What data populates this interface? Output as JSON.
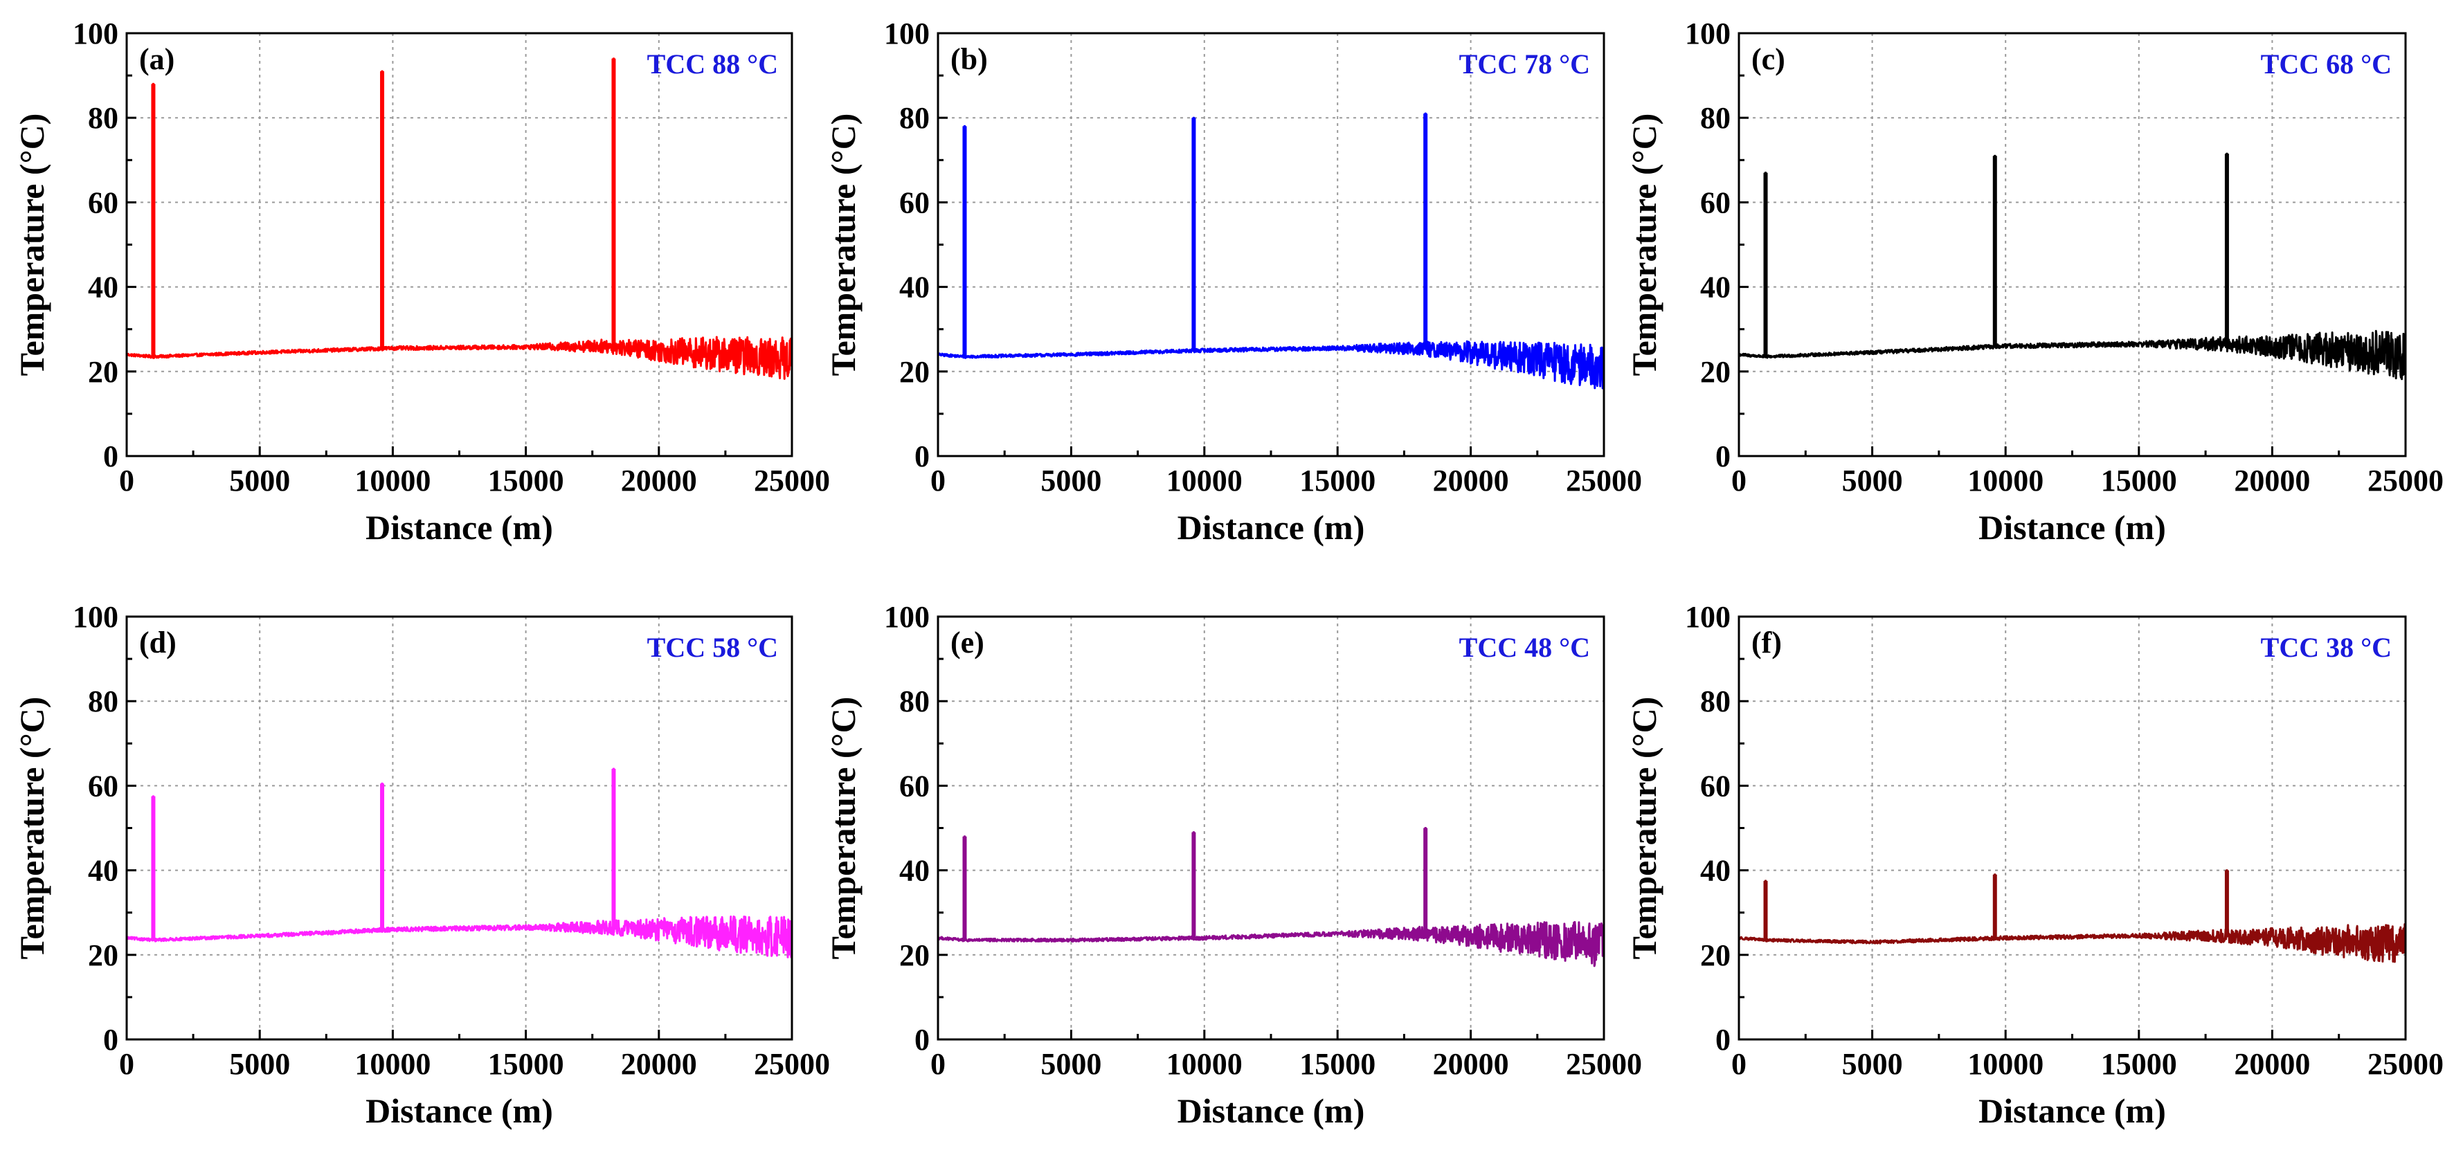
{
  "chart_data": [
    {
      "type": "line",
      "panel_label": "(a)",
      "annotation": "TCC  88 °C",
      "color": "#ff0000",
      "xlabel": "Distance (m)",
      "ylabel": "Temperature (°C)",
      "xlim": [
        0,
        25000
      ],
      "ylim": [
        0,
        100
      ],
      "xticks": [
        "0",
        "5000",
        "10000",
        "15000",
        "20000",
        "25000"
      ],
      "yticks": [
        "0",
        "20",
        "40",
        "60",
        "80",
        "100"
      ],
      "grid": true,
      "baseline": {
        "x": [
          0,
          1000,
          5000,
          10000,
          15000,
          18000,
          20000,
          25000
        ],
        "y": [
          24,
          23.5,
          24.5,
          25.5,
          25.8,
          26,
          25,
          23
        ]
      },
      "noise": {
        "x": [
          0,
          15000,
          19000,
          22000,
          25000
        ],
        "amp": [
          0.3,
          0.5,
          2,
          4,
          5
        ]
      },
      "peaks": [
        {
          "x": 1000,
          "y": 88
        },
        {
          "x": 9600,
          "y": 91
        },
        {
          "x": 18300,
          "y": 94
        }
      ]
    },
    {
      "type": "line",
      "panel_label": "(b)",
      "annotation": "TCC  78 °C",
      "color": "#0000ff",
      "xlabel": "Distance (m)",
      "ylabel": "Temperature (°C)",
      "xlim": [
        0,
        25000
      ],
      "ylim": [
        0,
        100
      ],
      "xticks": [
        "0",
        "5000",
        "10000",
        "15000",
        "20000",
        "25000"
      ],
      "yticks": [
        "0",
        "20",
        "40",
        "60",
        "80",
        "100"
      ],
      "grid": true,
      "baseline": {
        "x": [
          0,
          1000,
          5000,
          10000,
          15000,
          18000,
          20000,
          25000
        ],
        "y": [
          24,
          23.5,
          24,
          25,
          25.5,
          25.5,
          24.5,
          21
        ]
      },
      "noise": {
        "x": [
          0,
          15000,
          19000,
          22000,
          25000
        ],
        "amp": [
          0.3,
          0.5,
          2,
          4,
          5.5
        ]
      },
      "peaks": [
        {
          "x": 1000,
          "y": 78
        },
        {
          "x": 9600,
          "y": 80
        },
        {
          "x": 18300,
          "y": 81
        }
      ]
    },
    {
      "type": "line",
      "panel_label": "(c)",
      "annotation": "TCC  68 °C",
      "color": "#000000",
      "xlabel": "Distance (m)",
      "ylabel": "Temperature (°C)",
      "xlim": [
        0,
        25000
      ],
      "ylim": [
        0,
        100
      ],
      "xticks": [
        "0",
        "5000",
        "10000",
        "15000",
        "20000",
        "25000"
      ],
      "yticks": [
        "0",
        "20",
        "40",
        "60",
        "80",
        "100"
      ],
      "grid": true,
      "baseline": {
        "x": [
          0,
          1000,
          5000,
          10000,
          15000,
          18000,
          20000,
          25000
        ],
        "y": [
          24,
          23.5,
          24.5,
          26,
          26.5,
          26.5,
          26,
          24
        ]
      },
      "noise": {
        "x": [
          0,
          15000,
          19000,
          22000,
          25000
        ],
        "amp": [
          0.3,
          0.6,
          2,
          4,
          6
        ]
      },
      "peaks": [
        {
          "x": 1000,
          "y": 67
        },
        {
          "x": 9600,
          "y": 71
        },
        {
          "x": 18300,
          "y": 71.5
        }
      ]
    },
    {
      "type": "line",
      "panel_label": "(d)",
      "annotation": "TCC  58 °C",
      "color": "#ff22ff",
      "xlabel": "Distance (m)",
      "ylabel": "Temperature (°C)",
      "xlim": [
        0,
        25000
      ],
      "ylim": [
        0,
        100
      ],
      "xticks": [
        "0",
        "5000",
        "10000",
        "15000",
        "20000",
        "25000"
      ],
      "yticks": [
        "0",
        "20",
        "40",
        "60",
        "80",
        "100"
      ],
      "grid": true,
      "baseline": {
        "x": [
          0,
          1000,
          5000,
          10000,
          15000,
          18000,
          20000,
          25000
        ],
        "y": [
          24,
          23.5,
          24.5,
          26,
          26.5,
          26.5,
          26,
          24
        ]
      },
      "noise": {
        "x": [
          0,
          15000,
          19000,
          22000,
          25000
        ],
        "amp": [
          0.3,
          0.6,
          2,
          4,
          5
        ]
      },
      "peaks": [
        {
          "x": 1000,
          "y": 57.5
        },
        {
          "x": 9600,
          "y": 60.5
        },
        {
          "x": 18300,
          "y": 64
        }
      ]
    },
    {
      "type": "line",
      "panel_label": "(e)",
      "annotation": "TCC  48 °C",
      "color": "#8e0a8e",
      "xlabel": "Distance (m)",
      "ylabel": "Temperature (°C)",
      "xlim": [
        0,
        25000
      ],
      "ylim": [
        0,
        100
      ],
      "xticks": [
        "0",
        "5000",
        "10000",
        "15000",
        "20000",
        "25000"
      ],
      "yticks": [
        "0",
        "20",
        "40",
        "60",
        "80",
        "100"
      ],
      "grid": true,
      "baseline": {
        "x": [
          0,
          1000,
          5000,
          10000,
          15000,
          18000,
          20000,
          25000
        ],
        "y": [
          24,
          23.5,
          23.5,
          24,
          25,
          25,
          24.5,
          22.5
        ]
      },
      "noise": {
        "x": [
          0,
          15000,
          19000,
          22000,
          25000
        ],
        "amp": [
          0.3,
          0.5,
          2,
          4,
          5.5
        ]
      },
      "peaks": [
        {
          "x": 1000,
          "y": 48
        },
        {
          "x": 9600,
          "y": 49
        },
        {
          "x": 18300,
          "y": 50
        }
      ]
    },
    {
      "type": "line",
      "panel_label": "(f)",
      "annotation": "TCC  38 °C",
      "color": "#8b0a0a",
      "xlabel": "Distance (m)",
      "ylabel": "Temperature (°C)",
      "xlim": [
        0,
        25000
      ],
      "ylim": [
        0,
        100
      ],
      "xticks": [
        "0",
        "5000",
        "10000",
        "15000",
        "20000",
        "25000"
      ],
      "yticks": [
        "0",
        "20",
        "40",
        "60",
        "80",
        "100"
      ],
      "grid": true,
      "baseline": {
        "x": [
          0,
          1000,
          5000,
          10000,
          15000,
          18000,
          20000,
          25000
        ],
        "y": [
          24,
          23.5,
          23,
          24,
          24.5,
          24.5,
          24,
          22.5
        ]
      },
      "noise": {
        "x": [
          0,
          15000,
          19000,
          22000,
          25000
        ],
        "amp": [
          0.3,
          0.5,
          1.8,
          3.5,
          5
        ]
      },
      "peaks": [
        {
          "x": 1000,
          "y": 37.5
        },
        {
          "x": 9600,
          "y": 39
        },
        {
          "x": 18300,
          "y": 40
        }
      ]
    }
  ]
}
